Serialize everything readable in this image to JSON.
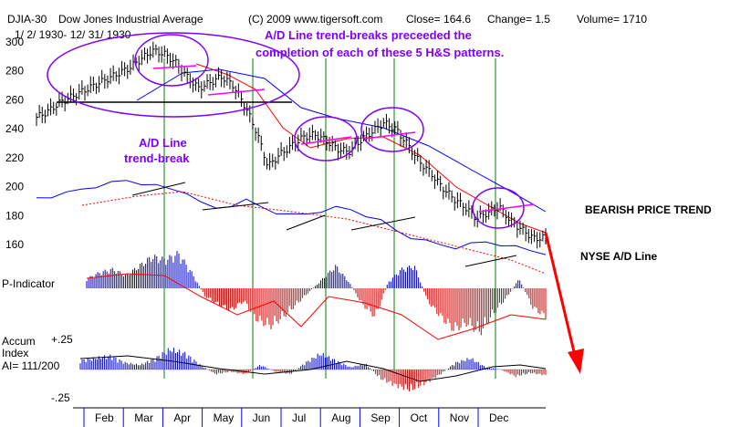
{
  "header": {
    "symbol": "DJIA-30",
    "name": "Dow Jones Industrial Average",
    "copyright": "(C) 2009 www.tigersoft.com",
    "close": "Close= 164.6",
    "change": "Change= 1.5",
    "volume": "Volume= 1710",
    "date_range": "1/ 2/ 1930- 12/ 31/ 1930"
  },
  "annotations": {
    "title_line1": "A/D Line trend-breaks preceeded the",
    "title_line2": "completion of each of these 5 H&S patterns.",
    "ad_break_line1": "A/D Line",
    "ad_break_line2": "trend-break",
    "bearish": "BEARISH PRICE TREND",
    "nyse_ad": "NYSE A/D Line"
  },
  "panels": {
    "p_indicator": "P-Indicator",
    "accum_line1": "Accum",
    "accum_line2": "Index",
    "accum_line3": "AI= 111/200",
    "plus25": "+.25",
    "minus25": "-.25"
  },
  "colors": {
    "price": "#000000",
    "ma_red": "#ff0000",
    "ma_blue": "#0000ff",
    "annotation": "#8000ff",
    "trendline": "#ff00ff",
    "breakline": "#008000",
    "pos_bar": "#0000cc",
    "neg_bar": "#cc0000"
  },
  "chart_data": {
    "type": "line",
    "title": "DJIA-30 Dow Jones Industrial Average 1930",
    "y_ticks": [
      300,
      280,
      260,
      240,
      220,
      200,
      180,
      160
    ],
    "ylim": [
      150,
      305
    ],
    "months": [
      "Feb",
      "Mar",
      "Apr",
      "May",
      "Jun",
      "Jul",
      "Aug",
      "Sep",
      "Oct",
      "Nov",
      "Dec"
    ],
    "price_weekly": [
      248,
      252,
      258,
      262,
      266,
      270,
      274,
      278,
      282,
      288,
      294,
      292,
      286,
      276,
      268,
      272,
      276,
      270,
      256,
      238,
      214,
      222,
      228,
      234,
      236,
      232,
      226,
      224,
      232,
      238,
      244,
      240,
      230,
      218,
      210,
      200,
      192,
      186,
      178,
      182,
      186,
      176,
      170,
      164,
      165
    ],
    "ad_line_weekly": [
      0.52,
      0.53,
      0.55,
      0.58,
      0.6,
      0.62,
      0.64,
      0.62,
      0.6,
      0.58,
      0.56,
      0.48,
      0.45,
      0.47,
      0.5,
      0.46,
      0.42,
      0.4,
      0.41,
      0.43,
      0.45,
      0.44,
      0.4,
      0.36,
      0.3,
      0.25,
      0.22,
      0.2,
      0.18,
      0.2,
      0.22,
      0.2,
      0.18,
      0.16,
      0.14
    ],
    "p_indicator": [
      6,
      10,
      12,
      8,
      14,
      20,
      18,
      22,
      10,
      -5,
      -10,
      -14,
      -8,
      -20,
      -24,
      -18,
      -10,
      -2,
      6,
      14,
      4,
      -10,
      -18,
      4,
      12,
      14,
      -8,
      -18,
      -26,
      -22,
      -28,
      -16,
      -6,
      6,
      -12,
      -18
    ],
    "accum_index": [
      0.08,
      0.1,
      0.12,
      0.06,
      0.04,
      0.1,
      0.18,
      0.14,
      0.04,
      -0.04,
      -0.02,
      -0.04,
      0.04,
      -0.02,
      -0.04,
      0.06,
      0.14,
      0.08,
      0.02,
      0.05,
      -0.08,
      -0.14,
      -0.18,
      -0.12,
      -0.04,
      0.06,
      0.1,
      0.02,
      0.0,
      -0.06,
      -0.03,
      -0.05
    ]
  }
}
